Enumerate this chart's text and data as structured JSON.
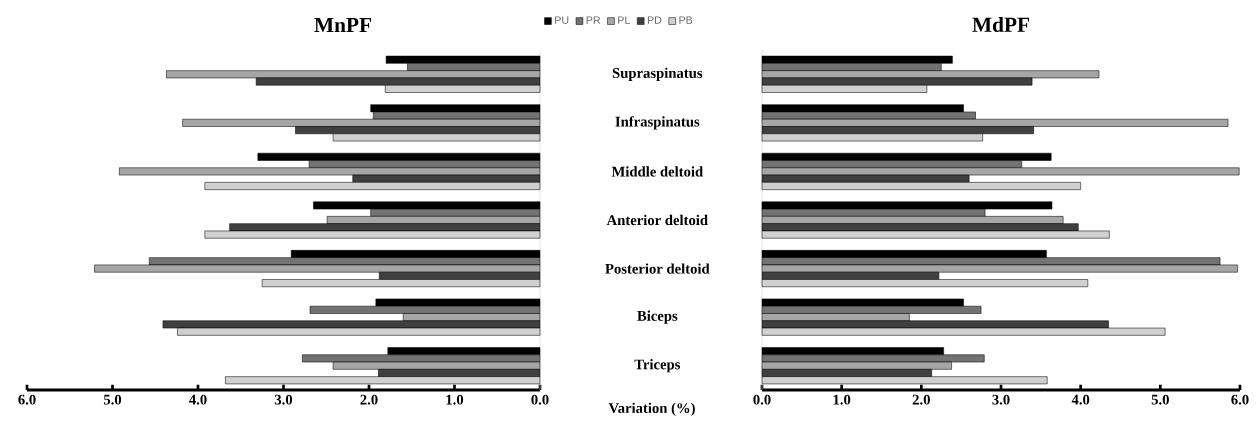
{
  "chart_data": [
    {
      "type": "bar",
      "orientation": "horizontal",
      "title": "MnPF",
      "xlabel": "Variation (%)",
      "categories": [
        "Supraspinatus",
        "Infraspinatus",
        "Middle deltoid",
        "Anterior deltoid",
        "Posterior deltoid",
        "Biceps",
        "Triceps"
      ],
      "series": [
        {
          "name": "PU",
          "color": "#000000",
          "values": [
            1.8,
            1.98,
            3.3,
            2.65,
            2.91,
            1.92,
            1.78
          ]
        },
        {
          "name": "PR",
          "color": "#737373",
          "values": [
            1.55,
            1.95,
            2.7,
            1.98,
            4.57,
            2.69,
            2.78
          ]
        },
        {
          "name": "PL",
          "color": "#a6a6a6",
          "values": [
            4.37,
            4.18,
            4.92,
            2.49,
            5.21,
            1.6,
            2.42
          ]
        },
        {
          "name": "PD",
          "color": "#404040",
          "values": [
            3.32,
            2.86,
            2.19,
            3.63,
            1.88,
            4.41,
            1.89
          ]
        },
        {
          "name": "PB",
          "color": "#d0d0d0",
          "values": [
            1.81,
            2.42,
            3.92,
            3.92,
            3.25,
            4.24,
            3.68
          ]
        }
      ],
      "xlim": [
        6,
        0
      ],
      "xticks": [
        {
          "value": 6,
          "label": "6.0"
        },
        {
          "value": 5,
          "label": "5.0"
        },
        {
          "value": 4,
          "label": "4.0"
        },
        {
          "value": 3,
          "label": "3.0"
        },
        {
          "value": 2,
          "label": "2.0"
        },
        {
          "value": 1,
          "label": "1.0"
        },
        {
          "value": 0,
          "label": "0.0"
        }
      ],
      "legend": "top right"
    },
    {
      "type": "bar",
      "orientation": "horizontal",
      "title": "MdPF",
      "categories": [
        null,
        null,
        null,
        null,
        null,
        null,
        null
      ],
      "series": [
        {
          "color": "#000000",
          "values": [
            2.39,
            2.53,
            3.63,
            3.64,
            3.57,
            2.53,
            2.28
          ]
        },
        {
          "color": "#737373",
          "values": [
            2.25,
            2.68,
            3.26,
            2.8,
            5.75,
            2.75,
            2.79
          ]
        },
        {
          "color": "#a6a6a6",
          "values": [
            4.23,
            5.85,
            5.99,
            3.78,
            5.97,
            1.85,
            2.38
          ]
        },
        {
          "color": "#404040",
          "values": [
            3.39,
            3.41,
            2.6,
            3.97,
            2.22,
            4.35,
            2.13
          ]
        },
        {
          "color": "#d0d0d0",
          "values": [
            2.07,
            2.77,
            4.0,
            4.36,
            4.09,
            5.06,
            3.58
          ]
        }
      ],
      "xlim": [
        0,
        6
      ],
      "xticks": [
        {
          "value": 0,
          "label": "0.0"
        },
        {
          "value": 1,
          "label": "1.0"
        },
        {
          "value": 2,
          "label": "2.0"
        },
        {
          "value": 3,
          "label": "3.0"
        },
        {
          "value": 4,
          "label": "4.0"
        },
        {
          "value": 5,
          "label": "5.0"
        },
        {
          "value": 6,
          "label": "6.0"
        }
      ],
      "tick_labels": "x"
    }
  ]
}
